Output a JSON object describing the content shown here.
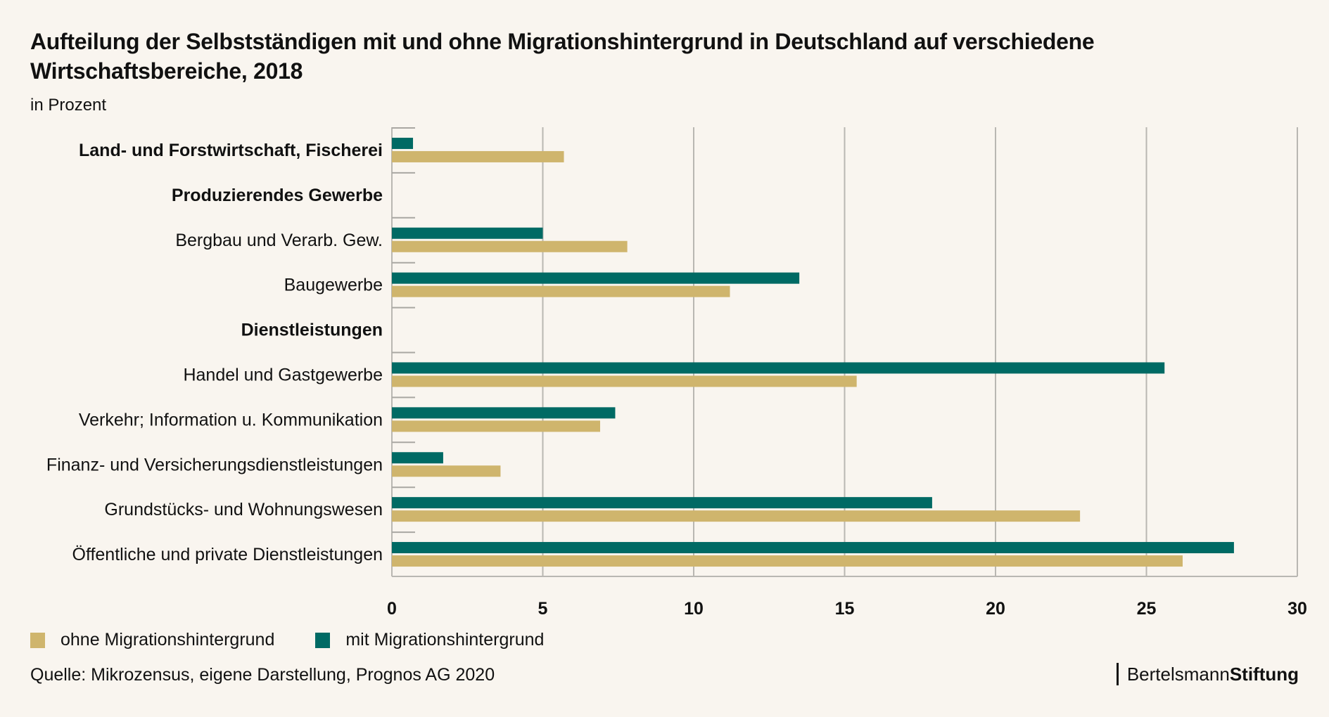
{
  "header": {
    "title": "Aufteilung der Selbstständigen mit und ohne Migrationshintergrund in Deutschland auf verschiedene Wirtschaftsbereiche, 2018",
    "subtitle": "in Prozent"
  },
  "legend": {
    "items": [
      {
        "label": "ohne Migrationshintergrund",
        "color": "#cfb56d"
      },
      {
        "label": "mit Migrationshintergrund",
        "color": "#006a64"
      }
    ]
  },
  "footer": {
    "source": "Quelle: Mikrozensus, eigene Darstellung, Prognos AG 2020",
    "brand_light": "Bertelsmann",
    "brand_bold": "Stiftung"
  },
  "chart_data": {
    "type": "bar",
    "orientation": "horizontal",
    "title": "Aufteilung der Selbstständigen mit und ohne Migrationshintergrund in Deutschland auf verschiedene Wirtschaftsbereiche, 2018",
    "subtitle": "in Prozent",
    "xlabel": "",
    "ylabel": "",
    "xlim": [
      0,
      30
    ],
    "xticks": [
      0,
      5,
      10,
      15,
      20,
      25,
      30
    ],
    "grid": true,
    "legend_position": "bottom-left",
    "categories": [
      {
        "label": "Land- und Forstwirtschaft, Fischerei",
        "bold": true
      },
      {
        "label": "Produzierendes Gewerbe",
        "bold": true
      },
      {
        "label": "Bergbau und Verarb. Gew.",
        "bold": false
      },
      {
        "label": "Baugewerbe",
        "bold": false
      },
      {
        "label": "Dienstleistungen",
        "bold": true
      },
      {
        "label": "Handel und Gastgewerbe",
        "bold": false
      },
      {
        "label": "Verkehr;  Information u. Kommunikation",
        "bold": false
      },
      {
        "label": "Finanz- und Versicherungsdienstleistungen",
        "bold": false
      },
      {
        "label": "Grundstücks- und Wohnungswesen",
        "bold": false
      },
      {
        "label": "Öffentliche und private Dienstleistungen",
        "bold": false
      }
    ],
    "series": [
      {
        "name": "mit Migrationshintergrund",
        "color": "#006a64",
        "values": [
          0.7,
          null,
          5.0,
          13.5,
          null,
          25.6,
          7.4,
          1.7,
          17.9,
          27.9
        ]
      },
      {
        "name": "ohne Migrationshintergrund",
        "color": "#cfb56d",
        "values": [
          5.7,
          null,
          7.8,
          11.2,
          null,
          15.4,
          6.9,
          3.6,
          22.8,
          26.2
        ]
      }
    ]
  }
}
